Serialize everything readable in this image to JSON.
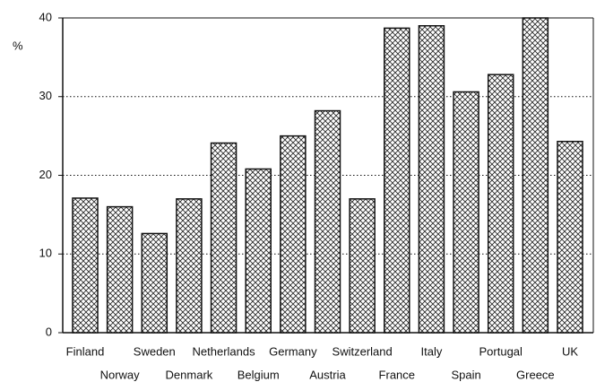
{
  "chart_data": {
    "type": "bar",
    "y_label": "%",
    "categories": [
      "Finland",
      "Norway",
      "Sweden",
      "Denmark",
      "Netherlands",
      "Belgium",
      "Germany",
      "Austria",
      "Switzerland",
      "France",
      "Italy",
      "Spain",
      "Portugal",
      "Greece",
      "UK"
    ],
    "values": [
      17.1,
      16,
      12.6,
      17,
      24.1,
      20.8,
      25,
      28.2,
      17,
      38.7,
      39,
      30.6,
      32.8,
      40,
      24.3
    ],
    "color": "#111111",
    "ylim": [
      0,
      40
    ],
    "yticks": [
      0,
      10,
      20,
      30,
      40
    ],
    "grid": true
  }
}
